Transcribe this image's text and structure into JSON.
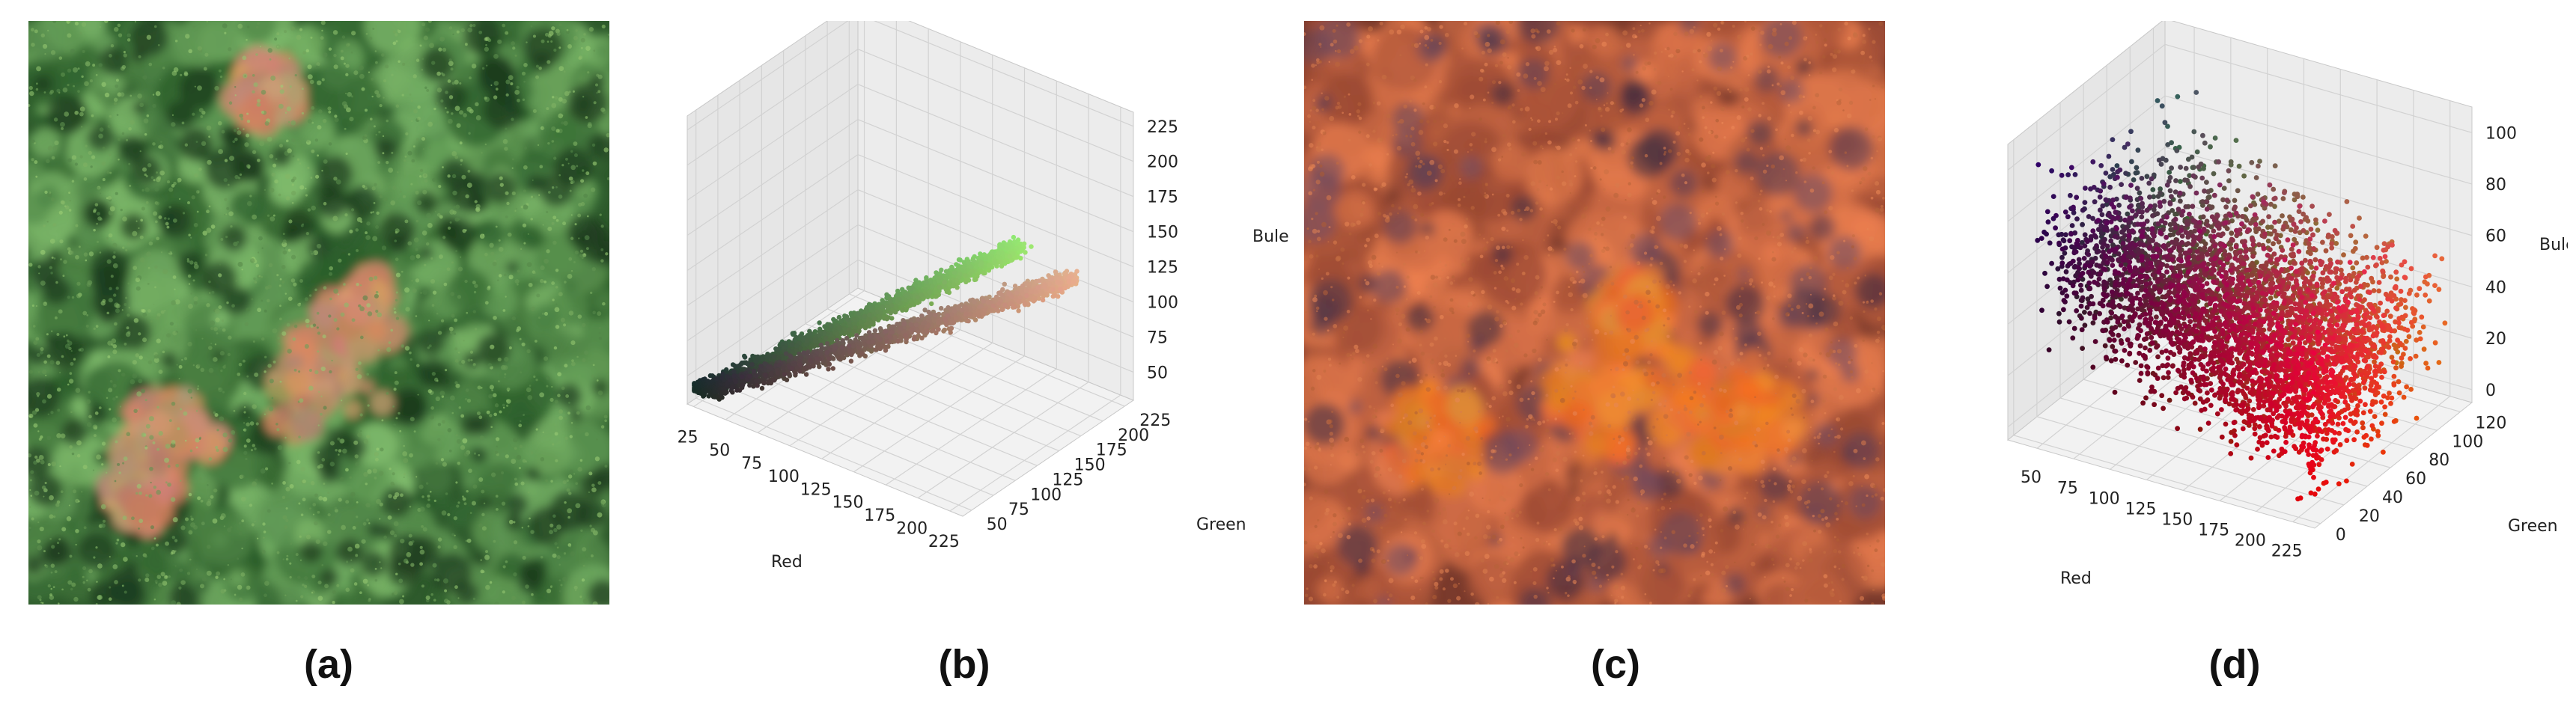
{
  "captions": {
    "a": "(a)",
    "b": "(b)",
    "c": "(c)",
    "d": "(d)"
  },
  "images": {
    "a": {
      "description_icon": "forest-canopy-rgb-photo",
      "colors": {
        "base": "#3f7a3c",
        "light": "#7fb56a",
        "dark": "#1f4020",
        "discolored": "#c99a72"
      }
    },
    "c": {
      "description_icon": "forest-canopy-transformed-photo",
      "colors": {
        "base": "#b65a30",
        "light": "#e07a3a",
        "dark": "#3a1f2a",
        "accent": "#d4641e"
      }
    }
  },
  "chart_data": [
    {
      "panel": "b",
      "type": "scatter",
      "dimensions": 3,
      "xlabel": "Red",
      "ylabel": "Green",
      "zlabel": "Bule",
      "xticks": [
        25,
        50,
        75,
        100,
        125,
        150,
        175,
        200,
        225
      ],
      "yticks": [
        50,
        75,
        100,
        125,
        150,
        175,
        200,
        225
      ],
      "zticks": [
        50,
        75,
        100,
        125,
        150,
        175,
        200,
        225
      ],
      "xlim": [
        20,
        235
      ],
      "ylim": [
        40,
        235
      ],
      "zlim": [
        30,
        235
      ],
      "grid": true,
      "points_colored_by_rgb": true,
      "point_cloud": {
        "start": {
          "r": 25,
          "g": 30,
          "b": 40
        },
        "end_green": {
          "r": 150,
          "g": 230,
          "b": 110
        },
        "end_orange": {
          "r": 230,
          "g": 175,
          "b": 140
        }
      }
    },
    {
      "panel": "d",
      "type": "scatter",
      "dimensions": 3,
      "xlabel": "Red",
      "ylabel": "Green",
      "zlabel": "Bule",
      "xticks": [
        50,
        75,
        100,
        125,
        150,
        175,
        200,
        225
      ],
      "yticks": [
        0,
        20,
        40,
        60,
        80,
        100,
        120
      ],
      "zticks": [
        0,
        20,
        40,
        60,
        80,
        100
      ],
      "xlim": [
        30,
        240
      ],
      "ylim": [
        -5,
        130
      ],
      "zlim": [
        -5,
        110
      ],
      "grid": true,
      "points_colored_by_rgb": true,
      "point_cloud": {
        "r_range": [
          40,
          235
        ],
        "g_range": [
          0,
          130
        ],
        "b_range": [
          0,
          105
        ]
      }
    }
  ]
}
